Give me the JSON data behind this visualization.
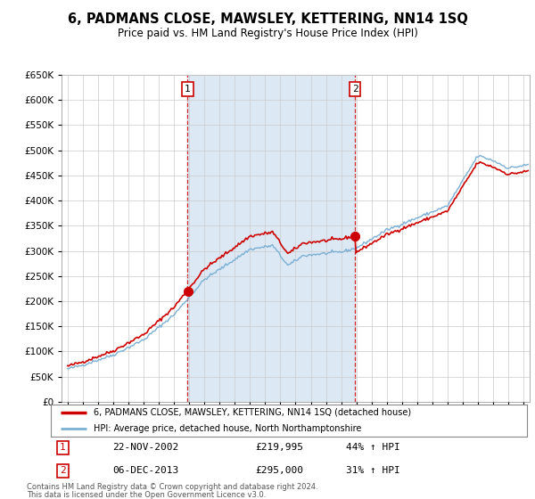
{
  "title": "6, PADMANS CLOSE, MAWSLEY, KETTERING, NN14 1SQ",
  "subtitle": "Price paid vs. HM Land Registry's House Price Index (HPI)",
  "legend_line1": "6, PADMANS CLOSE, MAWSLEY, KETTERING, NN14 1SQ (detached house)",
  "legend_line2": "HPI: Average price, detached house, North Northamptonshire",
  "transaction1_label": "1",
  "transaction1_date": "22-NOV-2002",
  "transaction1_price": "£219,995",
  "transaction1_hpi": "44% ↑ HPI",
  "transaction1_year": 2002.9,
  "transaction1_value": 219995,
  "transaction2_label": "2",
  "transaction2_date": "06-DEC-2013",
  "transaction2_price": "£295,000",
  "transaction2_hpi": "31% ↑ HPI",
  "transaction2_year": 2013.92,
  "transaction2_value": 295000,
  "footer_line1": "Contains HM Land Registry data © Crown copyright and database right 2024.",
  "footer_line2": "This data is licensed under the Open Government Licence v3.0.",
  "price_line_color": "#cc0000",
  "hpi_line_color": "#7bafd4",
  "shade_color": "#dce9f5",
  "background_color": "#ffffff",
  "grid_color": "#cccccc",
  "ylim_min": 0,
  "ylim_max": 650000,
  "xlim_min": 1994.6,
  "xlim_max": 2025.4
}
